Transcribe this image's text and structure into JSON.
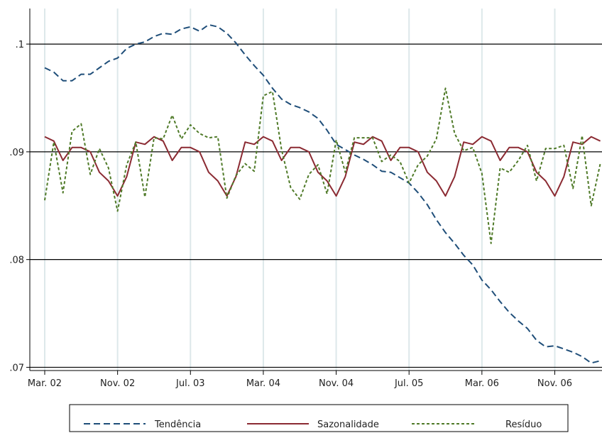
{
  "chart_data": {
    "type": "line",
    "x_ticks": [
      "Mar. 02",
      "Nov. 02",
      "Jul. 03",
      "Mar. 04",
      "Nov. 04",
      "Jul. 05",
      "Mar. 06",
      "Nov. 06"
    ],
    "x_start": "Mar. 02",
    "y_ticks": [
      ".07",
      ".08",
      ".09",
      ".1"
    ],
    "ylim": [
      0.0697,
      0.1033
    ],
    "grid": true,
    "legend_position": "bottom",
    "series": [
      {
        "name": "Tendência",
        "style": "dashed",
        "color": "#1f4e79",
        "values": [
          0.0978,
          0.0974,
          0.0966,
          0.0966,
          0.0972,
          0.0972,
          0.0978,
          0.0984,
          0.0987,
          0.0996,
          0.1,
          0.1002,
          0.1007,
          0.101,
          0.1009,
          0.1014,
          0.1016,
          0.1012,
          0.1018,
          0.1016,
          0.101,
          0.1001,
          0.099,
          0.098,
          0.0971,
          0.0959,
          0.0949,
          0.0944,
          0.0941,
          0.0937,
          0.0931,
          0.092,
          0.0907,
          0.0902,
          0.0897,
          0.0893,
          0.0888,
          0.0882,
          0.0881,
          0.0876,
          0.0871,
          0.0862,
          0.0851,
          0.0837,
          0.0825,
          0.0815,
          0.0804,
          0.0795,
          0.0781,
          0.0772,
          0.0761,
          0.0751,
          0.0743,
          0.0736,
          0.0725,
          0.0719,
          0.072,
          0.0717,
          0.0714,
          0.071,
          0.0704,
          0.0706
        ]
      },
      {
        "name": "Sazonalidade",
        "style": "solid",
        "color": "#8b2a32",
        "values": [
          0.0914,
          0.091,
          0.0892,
          0.0904,
          0.0904,
          0.09,
          0.0881,
          0.0873,
          0.0859,
          0.0877,
          0.0909,
          0.0907,
          0.0914,
          0.091,
          0.0892,
          0.0904,
          0.0904,
          0.09,
          0.0881,
          0.0873,
          0.0859,
          0.0877,
          0.0909,
          0.0907,
          0.0914,
          0.091,
          0.0892,
          0.0904,
          0.0904,
          0.09,
          0.0881,
          0.0873,
          0.0859,
          0.0877,
          0.0909,
          0.0907,
          0.0914,
          0.091,
          0.0892,
          0.0904,
          0.0904,
          0.09,
          0.0881,
          0.0873,
          0.0859,
          0.0877,
          0.0909,
          0.0907,
          0.0914,
          0.091,
          0.0892,
          0.0904,
          0.0904,
          0.09,
          0.0881,
          0.0873,
          0.0859,
          0.0877,
          0.0909,
          0.0907,
          0.0914,
          0.091
        ]
      },
      {
        "name": "Resíduo",
        "style": "dotted",
        "color": "#4f7a28",
        "values": [
          0.0855,
          0.0909,
          0.0862,
          0.0919,
          0.0926,
          0.0879,
          0.0903,
          0.0885,
          0.0845,
          0.0888,
          0.0909,
          0.0858,
          0.0913,
          0.0912,
          0.0934,
          0.0912,
          0.0925,
          0.0917,
          0.0913,
          0.0914,
          0.0857,
          0.0878,
          0.0889,
          0.0882,
          0.0952,
          0.0956,
          0.0902,
          0.0867,
          0.0856,
          0.0879,
          0.0888,
          0.0861,
          0.0911,
          0.0881,
          0.0913,
          0.0913,
          0.0913,
          0.0891,
          0.0897,
          0.0891,
          0.0871,
          0.0888,
          0.0896,
          0.0912,
          0.0959,
          0.0917,
          0.0901,
          0.0904,
          0.088,
          0.0815,
          0.0885,
          0.0881,
          0.0892,
          0.0906,
          0.0873,
          0.0903,
          0.0903,
          0.0906,
          0.0866,
          0.0915,
          0.085,
          0.0889
        ]
      }
    ],
    "legend": [
      "Tendência",
      "Sazonalidade",
      "Resíduo"
    ]
  }
}
